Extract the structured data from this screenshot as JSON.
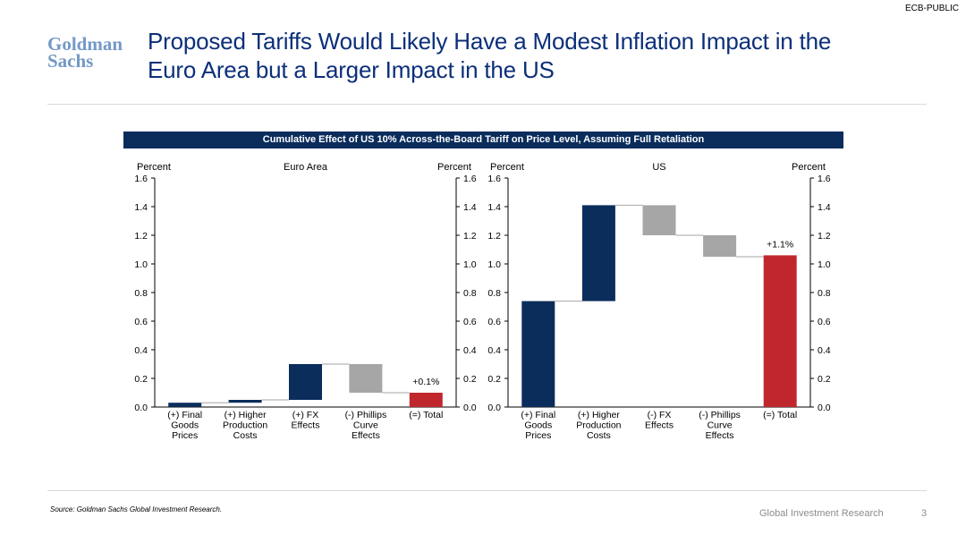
{
  "classification": "ECB-PUBLIC",
  "logo": {
    "line1": "Goldman",
    "line2": "Sachs"
  },
  "title": "Proposed Tariffs Would Likely Have a Modest Inflation Impact in the Euro Area but a Larger Impact in the US",
  "banner": "Cumulative Effect of US 10% Across-the-Board Tariff on Price Level, Assuming Full Retaliation",
  "source": "Source: Goldman Sachs Global Investment Research.",
  "footer": {
    "text": "Global Investment Research",
    "page": "3"
  },
  "colors": {
    "title": "#0c2f7a",
    "banner": "#0b2d5c",
    "increase": "#0b2d5c",
    "decrease": "#a6a6a6",
    "total": "#c0272d",
    "logo": "#7399c6"
  },
  "chart_data": [
    {
      "type": "waterfall",
      "title": "Euro Area",
      "ylabel_left": "Percent",
      "ylabel_right": "Percent",
      "ylim": [
        0,
        1.6
      ],
      "yticks": [
        "0.0",
        "0.2",
        "0.4",
        "0.6",
        "0.8",
        "1.0",
        "1.2",
        "1.4",
        "1.6"
      ],
      "categories": [
        [
          "(+) Final",
          "Goods",
          "Prices"
        ],
        [
          "(+) Higher",
          "Production",
          "Costs"
        ],
        [
          "(+) FX",
          "Effects"
        ],
        [
          "(-) Phillips",
          "Curve",
          "Effects"
        ],
        [
          "(=) Total"
        ]
      ],
      "values": [
        0.03,
        0.02,
        0.25,
        -0.2,
        0.1
      ],
      "kinds": [
        "increase",
        "increase",
        "increase",
        "decrease",
        "total"
      ],
      "total_label": "+0.1%"
    },
    {
      "type": "waterfall",
      "title": "US",
      "ylabel_left": "Percent",
      "ylabel_right": "Percent",
      "ylim": [
        0,
        1.6
      ],
      "yticks": [
        "0.0",
        "0.2",
        "0.4",
        "0.6",
        "0.8",
        "1.0",
        "1.2",
        "1.4",
        "1.6"
      ],
      "categories": [
        [
          "(+) Final",
          "Goods",
          "Prices"
        ],
        [
          "(+) Higher",
          "Production",
          "Costs"
        ],
        [
          "(-) FX",
          "Effects"
        ],
        [
          "(-) Phillips",
          "Curve",
          "Effects"
        ],
        [
          "(=) Total"
        ]
      ],
      "values": [
        0.74,
        0.67,
        -0.21,
        -0.15,
        1.06
      ],
      "kinds": [
        "increase",
        "increase",
        "decrease",
        "decrease",
        "total"
      ],
      "total_label": "+1.1%"
    }
  ]
}
